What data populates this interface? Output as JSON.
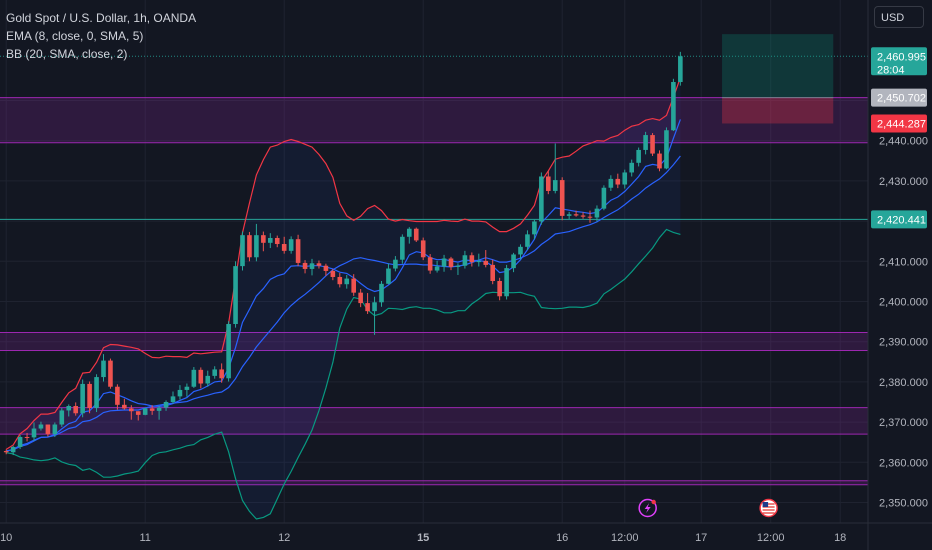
{
  "legend": {
    "symbol": "Gold Spot / U.S. Dollar, 1h, OANDA",
    "ema": "EMA (8, close, 0, SMA, 5)",
    "bb": "BB (20, SMA, close, 2)"
  },
  "currency_button": "USD",
  "price_badges": {
    "last": {
      "price": "2,460.995",
      "countdown": "28:04",
      "color": "#26a69a"
    },
    "level_gray": {
      "price": "2,450.702",
      "color": "#b2b5be"
    },
    "level_red": {
      "price": "2,444.287",
      "color": "#f23645"
    },
    "level_green": {
      "price": "2,420.441",
      "color": "#26a69a"
    }
  },
  "chart_data": {
    "type": "candlestick",
    "symbol": "Gold Spot / U.S. Dollar",
    "timeframe": "1h",
    "y_axis": {
      "ticks": [
        2350,
        2360,
        2370,
        2380,
        2390,
        2400,
        2410,
        2420,
        2430,
        2440,
        2450
      ],
      "tick_labels": [
        "2,350.000",
        "2,360.000",
        "2,370.000",
        "2,380.000",
        "2,390.000",
        "2,400.000",
        "2,410.000",
        "2,430.000",
        "2,440.000"
      ],
      "range": [
        2348,
        2465
      ]
    },
    "x_axis": {
      "tick_labels": [
        "10",
        "11",
        "12",
        "15",
        "16",
        "12:00",
        "17",
        "12:00",
        "18"
      ],
      "tick_index": [
        0,
        20,
        40,
        60,
        80,
        89,
        100,
        110,
        120
      ]
    },
    "candles": [
      [
        2362.8,
        2363.2,
        2362,
        2362.5
      ],
      [
        2362.5,
        2364.1,
        2361.8,
        2363.8
      ],
      [
        2363.8,
        2366.8,
        2363.3,
        2366.3
      ],
      [
        2366.3,
        2367.3,
        2365.2,
        2366.2
      ],
      [
        2366.2,
        2369.9,
        2365.3,
        2368.4
      ],
      [
        2368.4,
        2370.1,
        2367.9,
        2369.4
      ],
      [
        2369.4,
        2369.4,
        2366.4,
        2367
      ],
      [
        2367,
        2369.9,
        2366.3,
        2369.4
      ],
      [
        2369.4,
        2373.5,
        2368.8,
        2372.9
      ],
      [
        2372.9,
        2374.4,
        2371.4,
        2374
      ],
      [
        2374,
        2374.9,
        2371.6,
        2372.2
      ],
      [
        2372.2,
        2380.6,
        2371.2,
        2379.5
      ],
      [
        2379.5,
        2380.1,
        2372.2,
        2373.5
      ],
      [
        2373.5,
        2381.9,
        2372.5,
        2381.2
      ],
      [
        2381.2,
        2386.9,
        2380.1,
        2385.3
      ],
      [
        2385.3,
        2385.8,
        2378.3,
        2378.8
      ],
      [
        2378.8,
        2379.4,
        2373.1,
        2374.3
      ],
      [
        2374.3,
        2375.8,
        2373.1,
        2373.4
      ],
      [
        2373.4,
        2374.2,
        2370.6,
        2372.7
      ],
      [
        2372.7,
        2372.7,
        2370.4,
        2371.8
      ],
      [
        2371.8,
        2373.5,
        2371.7,
        2373.4
      ],
      [
        2373.4,
        2374.2,
        2371.8,
        2372.8
      ],
      [
        2372.8,
        2374,
        2370.6,
        2373.6
      ],
      [
        2373.6,
        2375.4,
        2372.8,
        2375
      ],
      [
        2375,
        2377.6,
        2374.6,
        2376.4
      ],
      [
        2376.4,
        2379.2,
        2375.6,
        2378
      ],
      [
        2378,
        2379.6,
        2376.3,
        2378.8
      ],
      [
        2378.8,
        2383.7,
        2378.5,
        2383
      ],
      [
        2383,
        2383.6,
        2378.4,
        2379.6
      ],
      [
        2379.6,
        2382.8,
        2378.8,
        2381.5
      ],
      [
        2381.5,
        2383.9,
        2380.8,
        2383.1
      ],
      [
        2383.1,
        2384.6,
        2379.8,
        2380.9
      ],
      [
        2380.9,
        2395.1,
        2380.1,
        2394.4
      ],
      [
        2394.4,
        2410,
        2393.5,
        2408.8
      ],
      [
        2408.8,
        2417.4,
        2407.7,
        2416.5
      ],
      [
        2416.5,
        2417.3,
        2410,
        2411
      ],
      [
        2411,
        2419.3,
        2410,
        2416.5
      ],
      [
        2416.5,
        2417.4,
        2412.5,
        2414.6
      ],
      [
        2414.6,
        2417,
        2413.3,
        2415.8
      ],
      [
        2415.8,
        2416.4,
        2413.5,
        2414.3
      ],
      [
        2414.3,
        2416.1,
        2411.9,
        2412.6
      ],
      [
        2412.6,
        2416.2,
        2411.9,
        2415.5
      ],
      [
        2415.5,
        2416.6,
        2408.8,
        2409.6
      ],
      [
        2409.6,
        2410.3,
        2407,
        2408.1
      ],
      [
        2408.1,
        2410.6,
        2406.5,
        2409.5
      ],
      [
        2409.5,
        2410.2,
        2408.2,
        2408.9
      ],
      [
        2408.9,
        2409.4,
        2406.4,
        2407.6
      ],
      [
        2407.6,
        2408.1,
        2405.3,
        2406.1
      ],
      [
        2406.1,
        2407.1,
        2403.5,
        2404.3
      ],
      [
        2404.3,
        2406.6,
        2403.2,
        2405.7
      ],
      [
        2405.7,
        2406.8,
        2401.4,
        2402.2
      ],
      [
        2402.2,
        2403.1,
        2398.6,
        2399.6
      ],
      [
        2399.6,
        2402.1,
        2396.9,
        2397.6
      ],
      [
        2397.6,
        2401.2,
        2391.7,
        2399.8
      ],
      [
        2399.8,
        2405.1,
        2398.7,
        2404.4
      ],
      [
        2404.4,
        2409.5,
        2404.3,
        2408.2
      ],
      [
        2408.2,
        2411.3,
        2407.5,
        2410.4
      ],
      [
        2410.4,
        2416.7,
        2409.4,
        2416.1
      ],
      [
        2416.1,
        2418.5,
        2414.4,
        2418.1
      ],
      [
        2418.1,
        2418.4,
        2414.8,
        2415.2
      ],
      [
        2415.2,
        2415.9,
        2410.3,
        2411
      ],
      [
        2411,
        2411.8,
        2406.9,
        2407.7
      ],
      [
        2407.7,
        2410.1,
        2407.2,
        2408.7
      ],
      [
        2408.7,
        2411.6,
        2407.4,
        2410.7
      ],
      [
        2410.7,
        2411.1,
        2407.8,
        2408.6
      ],
      [
        2408.6,
        2409.5,
        2406.6,
        2408.9
      ],
      [
        2408.9,
        2412.6,
        2408.2,
        2411.5
      ],
      [
        2411.5,
        2412.2,
        2408.7,
        2409.8
      ],
      [
        2409.8,
        2411.9,
        2408.7,
        2410.1
      ],
      [
        2410.1,
        2412.8,
        2408.5,
        2409.1
      ],
      [
        2409.1,
        2410.4,
        2404.3,
        2405.1
      ],
      [
        2405.1,
        2405.9,
        2400.3,
        2401.3
      ],
      [
        2401.3,
        2409.1,
        2400.5,
        2408.3
      ],
      [
        2408.3,
        2412.1,
        2407.3,
        2411.7
      ],
      [
        2411.7,
        2414.2,
        2410.5,
        2413.6
      ],
      [
        2413.6,
        2417.7,
        2412.8,
        2416.7
      ],
      [
        2416.7,
        2420.3,
        2415.5,
        2419.9
      ],
      [
        2419.9,
        2432.1,
        2419.1,
        2431.1
      ],
      [
        2431.1,
        2432.4,
        2426.7,
        2427.5
      ],
      [
        2427.5,
        2439.3,
        2426.9,
        2430.2
      ],
      [
        2430.2,
        2430.9,
        2420.2,
        2421.3
      ],
      [
        2421.3,
        2422.3,
        2420.4,
        2421.7
      ],
      [
        2421.7,
        2422.6,
        2421.1,
        2421.4
      ],
      [
        2421.4,
        2422.2,
        2420.6,
        2421.1
      ],
      [
        2421.1,
        2422.6,
        2419.6,
        2420.9
      ],
      [
        2420.9,
        2423.9,
        2419.9,
        2423.1
      ],
      [
        2423.1,
        2428.9,
        2422.7,
        2428.3
      ],
      [
        2428.3,
        2431.4,
        2427.5,
        2430.5
      ],
      [
        2430.5,
        2431.8,
        2428.2,
        2429.1
      ],
      [
        2429.1,
        2432.8,
        2428.1,
        2432.1
      ],
      [
        2432.1,
        2435.3,
        2431.1,
        2434.5
      ],
      [
        2434.5,
        2438.3,
        2433.6,
        2437.7
      ],
      [
        2437.7,
        2442.2,
        2436.6,
        2441.4
      ],
      [
        2441.4,
        2441.9,
        2436.2,
        2436.8
      ],
      [
        2436.8,
        2437.6,
        2432.4,
        2433.1
      ],
      [
        2433.1,
        2443.3,
        2432.9,
        2442.6
      ],
      [
        2442.6,
        2455.4,
        2442.4,
        2454.6
      ],
      [
        2454.6,
        2462.1,
        2453.7,
        2461
      ]
    ],
    "ema": [
      2362.8,
      2363.1,
      2363.9,
      2364.4,
      2365.3,
      2366.2,
      2366.3,
      2366.9,
      2368.3,
      2369.6,
      2370.2,
      2372.5,
      2372.8,
      2374.6,
      2377.1,
      2377.5,
      2376.8,
      2376.1,
      2375.3,
      2374.6,
      2374.4,
      2374,
      2373.9,
      2374.1,
      2374.6,
      2375.4,
      2376.1,
      2377.6,
      2378.1,
      2379,
      2380,
      2380.2,
      2383.4,
      2388.5,
      2394.8,
      2398,
      2401.4,
      2403.2,
      2405.5,
      2406.4,
      2406.9,
      2408.8,
      2408.9,
      2408.7,
      2408.9,
      2408.9,
      2408.6,
      2408.1,
      2407.3,
      2407,
      2405.9,
      2404.5,
      2403.2,
      2402.5,
      2402.9,
      2404.1,
      2405.5,
      2408.4,
      2411.6,
      2412.4,
      2412.1,
      2410.9,
      2410.4,
      2410.5,
      2410.1,
      2409.8,
      2410.3,
      2410.2,
      2410.2,
      2409.9,
      2408.8,
      2407.2,
      2407.5,
      2408.6,
      2410.4,
      2412.9,
      2415.5,
      2419.6,
      2421.4,
      2423.3,
      2423,
      2422.7,
      2422.4,
      2422.2,
      2421.9,
      2422.2,
      2423.6,
      2425.2,
      2426,
      2427.4,
      2429.2,
      2431.1,
      2433.6,
      2434.1,
      2433.8,
      2435.7,
      2440.6,
      2445.3
    ],
    "bb_upper": [
      2363.2,
      2364.3,
      2367.1,
      2368.4,
      2370.4,
      2372,
      2372,
      2372.4,
      2374.9,
      2377.3,
      2378.4,
      2382.2,
      2382.4,
      2384.9,
      2388.5,
      2389.3,
      2389.2,
      2388.9,
      2388.6,
      2388.2,
      2387.1,
      2386.1,
      2386,
      2386.4,
      2386.3,
      2386.3,
      2386.1,
      2387.2,
      2387,
      2387.2,
      2387.4,
      2387.5,
      2394.6,
      2405.6,
      2417.1,
      2424.4,
      2431.5,
      2435.3,
      2438.4,
      2438.9,
      2439.8,
      2440.3,
      2439.8,
      2439.1,
      2438.4,
      2436.6,
      2434.3,
      2430.9,
      2424.4,
      2421.3,
      2420.2,
      2421.2,
      2423.1,
      2423.9,
      2422.6,
      2420.5,
      2420,
      2420.4,
      2420.1,
      2419.9,
      2419.9,
      2419.9,
      2419.9,
      2420.2,
      2420,
      2419.9,
      2420.5,
      2420,
      2420,
      2419.8,
      2418.5,
      2417.4,
      2417.4,
      2418.2,
      2419.3,
      2421.5,
      2423.9,
      2429.9,
      2432.5,
      2435.4,
      2435.9,
      2436.2,
      2437.4,
      2438.7,
      2439.3,
      2440,
      2439.9,
      2440.8,
      2441.3,
      2442.6,
      2443.6,
      2444,
      2445.1,
      2445.5,
      2445.1,
      2446.3,
      2450.8,
      2455.7
    ],
    "bb_middle": [
      2362.8,
      2363.2,
      2364.2,
      2364.7,
      2365.5,
      2366.2,
      2366.3,
      2366.7,
      2367.5,
      2368.4,
      2368.8,
      2370.1,
      2370.4,
      2371.2,
      2372.4,
      2372.8,
      2372.9,
      2373,
      2373,
      2373,
      2373.5,
      2373.9,
      2374.2,
      2374.5,
      2374.7,
      2374.9,
      2375.1,
      2375.8,
      2376.3,
      2376.7,
      2377.2,
      2377.5,
      2378.6,
      2380.8,
      2383.8,
      2386.1,
      2388.7,
      2390.8,
      2392.8,
      2394.9,
      2397.2,
      2399,
      2400.5,
      2401.8,
      2403.2,
      2404.7,
      2406.4,
      2407.9,
      2408.9,
      2409.7,
      2410.6,
      2410.9,
      2410.5,
      2410.2,
      2409.8,
      2409.4,
      2409.1,
      2409.2,
      2409.3,
      2409.3,
      2409.1,
      2409.1,
      2408.9,
      2408.7,
      2408.6,
      2408.8,
      2409.1,
      2409.7,
      2410.3,
      2410.9,
      2410.4,
      2409.8,
      2409.8,
      2410.2,
      2410.8,
      2411.6,
      2412.6,
      2414.2,
      2415.4,
      2416.8,
      2417.1,
      2417.4,
      2418,
      2418.6,
      2419.1,
      2419.8,
      2420.9,
      2421.9,
      2422.8,
      2424.1,
      2425.5,
      2426.7,
      2428.2,
      2429.4,
      2430.5,
      2432.1,
      2434,
      2436.2
    ],
    "bb_lower": [
      2362.4,
      2362.1,
      2361.3,
      2361,
      2360.6,
      2360.4,
      2360.6,
      2361.1,
      2360.1,
      2359.5,
      2359.2,
      2358,
      2358.4,
      2357.5,
      2356.3,
      2356.3,
      2356.6,
      2357.1,
      2357.4,
      2357.8,
      2359.9,
      2361.7,
      2362.4,
      2362.6,
      2363.1,
      2363.5,
      2364.1,
      2364.4,
      2365.6,
      2366.2,
      2367,
      2367.5,
      2362.6,
      2356,
      2350.5,
      2347.8,
      2345.9,
      2346.3,
      2347.2,
      2350.9,
      2354.6,
      2357.7,
      2361.2,
      2364.5,
      2368,
      2372.8,
      2378.5,
      2384.9,
      2393.4,
      2398.1,
      2401,
      2400.6,
      2397.9,
      2396.5,
      2397,
      2398.3,
      2398.2,
      2398,
      2398.5,
      2398.7,
      2398.3,
      2398.3,
      2397.9,
      2397.2,
      2397.2,
      2397.7,
      2397.7,
      2399.4,
      2400.6,
      2402,
      2402.3,
      2402.2,
      2402.2,
      2402.2,
      2402.3,
      2401.7,
      2401.3,
      2398.5,
      2398.3,
      2398.2,
      2398.3,
      2398.6,
      2398.6,
      2398.5,
      2398.9,
      2399.6,
      2401.9,
      2403,
      2404.3,
      2405.6,
      2407.4,
      2409.4,
      2411.3,
      2413.3,
      2415.9,
      2417.9,
      2417.2,
      2416.7
    ],
    "horizontal_levels": [
      2460.995,
      2450.702,
      2444.287,
      2420.441
    ],
    "zones": [
      [
        2439.5,
        2450.7
      ],
      [
        2387.8,
        2392.3
      ],
      [
        2367,
        2373.6
      ],
      [
        2354.4,
        2355.4
      ]
    ],
    "position_box": {
      "entry": 2450.702,
      "target": 2466.5,
      "stop": 2444.287,
      "start_index": 103,
      "end_index": 119
    }
  }
}
